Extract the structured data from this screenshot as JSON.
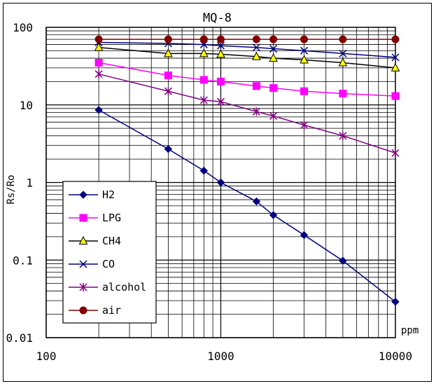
{
  "chart_data": {
    "type": "line",
    "title": "MQ-8",
    "xlabel": "ppm",
    "ylabel": "Rs/Ro",
    "xscale": "log",
    "yscale": "log",
    "xlim": [
      100,
      10000
    ],
    "ylim": [
      0.01,
      100
    ],
    "x_tick_labels": [
      "100",
      "1000",
      "10000"
    ],
    "y_tick_labels": [
      "100",
      "10",
      "1",
      "0.1",
      "0.01"
    ],
    "grid": true,
    "legend_position": "lower-left",
    "series": [
      {
        "name": "H2",
        "color": "#000080",
        "marker": "diamond",
        "x": [
          200,
          500,
          800,
          1000,
          1600,
          2000,
          3000,
          5000,
          10000
        ],
        "y": [
          8.6,
          2.7,
          1.42,
          1.0,
          0.57,
          0.38,
          0.21,
          0.098,
          0.029
        ]
      },
      {
        "name": "LPG",
        "color": "#ff00ff",
        "marker": "square",
        "x": [
          200,
          500,
          800,
          1000,
          1600,
          2000,
          3000,
          5000,
          10000
        ],
        "y": [
          35,
          24,
          21,
          20,
          17.5,
          16.5,
          15,
          14,
          13
        ]
      },
      {
        "name": "CH4",
        "color": "#000000",
        "marker": "triangle",
        "x": [
          200,
          500,
          800,
          1000,
          1600,
          2000,
          3000,
          5000,
          10000
        ],
        "y": [
          55,
          46,
          46,
          45,
          42,
          40,
          38,
          35,
          30
        ]
      },
      {
        "name": "CO",
        "color": "#000080",
        "marker": "x",
        "x": [
          200,
          500,
          800,
          1000,
          1600,
          2000,
          3000,
          5000,
          10000
        ],
        "y": [
          64,
          62,
          60,
          58,
          55,
          53,
          50,
          46,
          41
        ]
      },
      {
        "name": "alcohol",
        "color": "#800080",
        "marker": "star",
        "x": [
          200,
          500,
          800,
          1000,
          1600,
          2000,
          3000,
          5000,
          10000
        ],
        "y": [
          25,
          15,
          11.5,
          11,
          8.2,
          7.2,
          5.5,
          4.0,
          2.4
        ]
      },
      {
        "name": "air",
        "color": "#800000",
        "marker": "circle",
        "x": [
          200,
          500,
          800,
          1000,
          1600,
          2000,
          3000,
          5000,
          10000
        ],
        "y": [
          70,
          70,
          70,
          70,
          70,
          70,
          70,
          70,
          70
        ]
      }
    ]
  }
}
